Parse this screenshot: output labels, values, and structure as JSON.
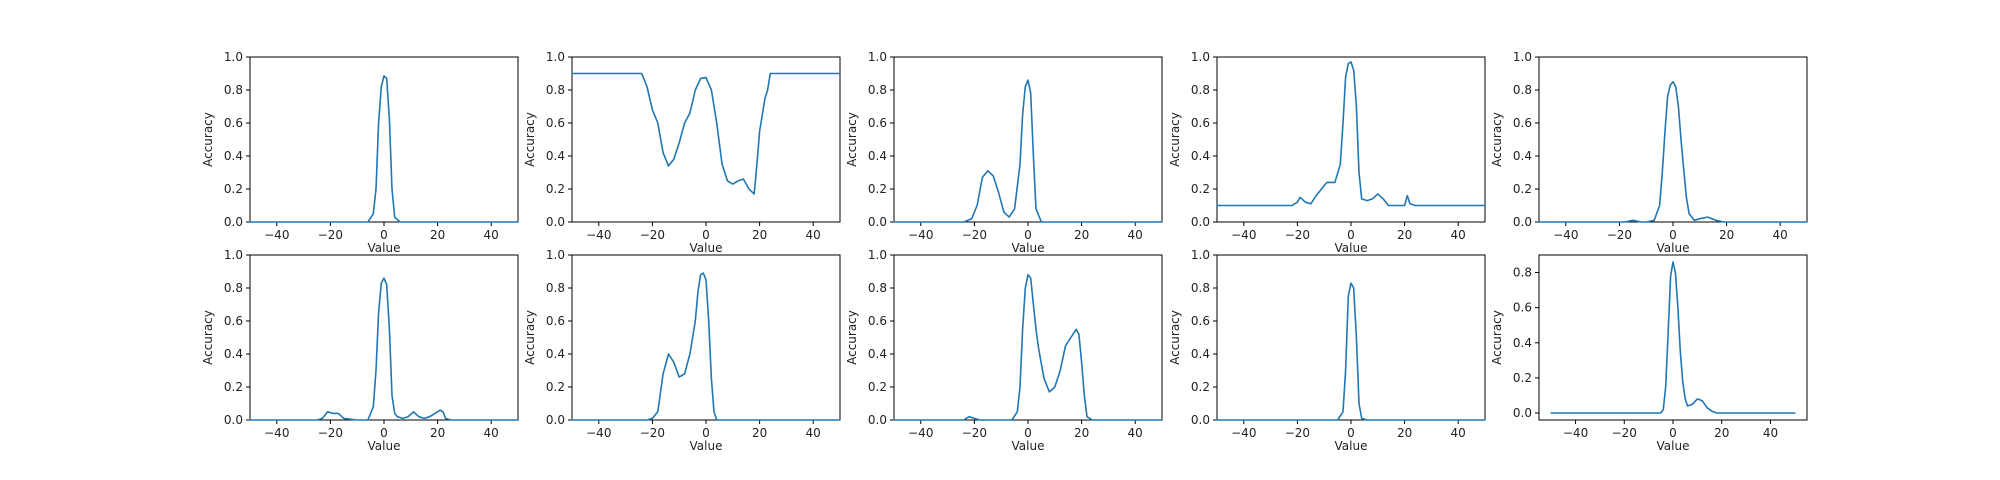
{
  "chart_data": [
    {
      "type": "line",
      "xlabel": "Value",
      "ylabel": "Accuracy",
      "xlim": [
        -50,
        50
      ],
      "ylim": [
        0,
        1.0
      ],
      "xticks": [
        -40,
        -20,
        0,
        20,
        40
      ],
      "yticks": [
        0.0,
        0.2,
        0.4,
        0.6,
        0.8,
        1.0
      ],
      "ytick_labels": [
        "0.0",
        "0.2",
        "0.4",
        "0.6",
        "0.8",
        "1.0"
      ],
      "color": "#1f77b4",
      "grid": false,
      "series": [
        {
          "x": [
            -50,
            -10,
            -6,
            -4,
            -3,
            -2,
            -1,
            0,
            1,
            2,
            3,
            4,
            6,
            10,
            50
          ],
          "y": [
            0,
            0,
            0,
            0.05,
            0.2,
            0.6,
            0.82,
            0.885,
            0.87,
            0.62,
            0.2,
            0.03,
            0,
            0,
            0
          ]
        }
      ]
    },
    {
      "type": "line",
      "xlabel": "Value",
      "ylabel": "Accuracy",
      "xlim": [
        -50,
        50
      ],
      "ylim": [
        0,
        1.0
      ],
      "xticks": [
        -40,
        -20,
        0,
        20,
        40
      ],
      "yticks": [
        0.0,
        0.2,
        0.4,
        0.6,
        0.8,
        1.0
      ],
      "ytick_labels": [
        "0.0",
        "0.2",
        "0.4",
        "0.6",
        "0.8",
        "1.0"
      ],
      "color": "#1f77b4",
      "grid": false,
      "series": [
        {
          "x": [
            -50,
            -24,
            -22,
            -20,
            -18,
            -16,
            -14,
            -12,
            -10,
            -8,
            -6,
            -4,
            -2,
            0,
            2,
            4,
            6,
            8,
            10,
            12,
            14,
            16,
            18,
            19,
            20,
            22,
            23,
            24,
            26,
            50
          ],
          "y": [
            0.9,
            0.9,
            0.82,
            0.68,
            0.6,
            0.42,
            0.34,
            0.38,
            0.48,
            0.6,
            0.66,
            0.8,
            0.87,
            0.875,
            0.8,
            0.6,
            0.35,
            0.25,
            0.23,
            0.25,
            0.26,
            0.2,
            0.17,
            0.35,
            0.55,
            0.75,
            0.8,
            0.9,
            0.9,
            0.9
          ]
        }
      ]
    },
    {
      "type": "line",
      "xlabel": "Value",
      "ylabel": "Accuracy",
      "xlim": [
        -50,
        50
      ],
      "ylim": [
        0,
        1.0
      ],
      "xticks": [
        -40,
        -20,
        0,
        20,
        40
      ],
      "yticks": [
        0.0,
        0.2,
        0.4,
        0.6,
        0.8,
        1.0
      ],
      "ytick_labels": [
        "0.0",
        "0.2",
        "0.4",
        "0.6",
        "0.8",
        "1.0"
      ],
      "color": "#1f77b4",
      "grid": false,
      "series": [
        {
          "x": [
            -50,
            -24,
            -21,
            -19,
            -17,
            -15,
            -13,
            -11,
            -9,
            -7,
            -5,
            -3,
            -2,
            -1,
            0,
            1,
            2,
            3,
            5,
            50
          ],
          "y": [
            0,
            0,
            0.02,
            0.1,
            0.27,
            0.31,
            0.28,
            0.18,
            0.06,
            0.03,
            0.08,
            0.35,
            0.65,
            0.82,
            0.86,
            0.78,
            0.4,
            0.08,
            0,
            0
          ]
        }
      ]
    },
    {
      "type": "line",
      "xlabel": "Value",
      "ylabel": "Accuracy",
      "xlim": [
        -50,
        50
      ],
      "ylim": [
        0,
        1.0
      ],
      "xticks": [
        -40,
        -20,
        0,
        20,
        40
      ],
      "yticks": [
        0.0,
        0.2,
        0.4,
        0.6,
        0.8,
        1.0
      ],
      "ytick_labels": [
        "0.0",
        "0.2",
        "0.4",
        "0.6",
        "0.8",
        "1.0"
      ],
      "color": "#1f77b4",
      "grid": false,
      "series": [
        {
          "x": [
            -50,
            -22,
            -20,
            -19,
            -17,
            -15,
            -13,
            -11,
            -9,
            -8,
            -6,
            -4,
            -3,
            -2,
            -1,
            0,
            1,
            2,
            3,
            4,
            6,
            8,
            10,
            12,
            14,
            16,
            18,
            20,
            21,
            22,
            24,
            50
          ],
          "y": [
            0.1,
            0.1,
            0.12,
            0.15,
            0.12,
            0.11,
            0.16,
            0.2,
            0.24,
            0.24,
            0.24,
            0.35,
            0.6,
            0.88,
            0.96,
            0.97,
            0.92,
            0.7,
            0.3,
            0.14,
            0.13,
            0.14,
            0.17,
            0.14,
            0.1,
            0.1,
            0.1,
            0.1,
            0.16,
            0.11,
            0.1,
            0.1
          ]
        }
      ]
    },
    {
      "type": "line",
      "xlabel": "Value",
      "ylabel": "Accuracy",
      "xlim": [
        -50,
        50
      ],
      "ylim": [
        0,
        1.0
      ],
      "xticks": [
        -40,
        -20,
        0,
        20,
        40
      ],
      "yticks": [
        0.0,
        0.2,
        0.4,
        0.6,
        0.8,
        1.0
      ],
      "ytick_labels": [
        "0.0",
        "0.2",
        "0.4",
        "0.6",
        "0.8",
        "1.0"
      ],
      "color": "#1f77b4",
      "grid": false,
      "series": [
        {
          "x": [
            -50,
            -18,
            -15,
            -12,
            -10,
            -7,
            -5,
            -4,
            -3,
            -2,
            -1,
            0,
            1,
            2,
            3,
            4,
            5,
            6,
            8,
            10,
            13,
            16,
            19,
            50
          ],
          "y": [
            0,
            0,
            0.01,
            0,
            0,
            0.01,
            0.1,
            0.3,
            0.55,
            0.76,
            0.83,
            0.85,
            0.82,
            0.7,
            0.5,
            0.32,
            0.15,
            0.05,
            0.01,
            0.02,
            0.03,
            0.01,
            0,
            0
          ]
        }
      ]
    },
    {
      "type": "line",
      "xlabel": "Value",
      "ylabel": "Accuracy",
      "xlim": [
        -50,
        50
      ],
      "ylim": [
        0,
        1.0
      ],
      "xticks": [
        -40,
        -20,
        0,
        20,
        40
      ],
      "yticks": [
        0.0,
        0.2,
        0.4,
        0.6,
        0.8,
        1.0
      ],
      "ytick_labels": [
        "0.0",
        "0.2",
        "0.4",
        "0.6",
        "0.8",
        "1.0"
      ],
      "color": "#1f77b4",
      "grid": false,
      "series": [
        {
          "x": [
            -50,
            -25,
            -23,
            -21,
            -19,
            -17,
            -15,
            -10,
            -6,
            -4,
            -3,
            -2,
            -1,
            0,
            1,
            2,
            3,
            4,
            5,
            7,
            9,
            11,
            13,
            15,
            17,
            19,
            21,
            22,
            23,
            25,
            50
          ],
          "y": [
            0,
            0,
            0.01,
            0.05,
            0.04,
            0.04,
            0.01,
            0,
            0,
            0.08,
            0.3,
            0.65,
            0.83,
            0.86,
            0.82,
            0.55,
            0.15,
            0.04,
            0.02,
            0.01,
            0.02,
            0.05,
            0.02,
            0.01,
            0.02,
            0.04,
            0.06,
            0.05,
            0.01,
            0,
            0
          ]
        }
      ]
    },
    {
      "type": "line",
      "xlabel": "Value",
      "ylabel": "Accuracy",
      "xlim": [
        -50,
        50
      ],
      "ylim": [
        0,
        1.0
      ],
      "xticks": [
        -40,
        -20,
        0,
        20,
        40
      ],
      "yticks": [
        0.0,
        0.2,
        0.4,
        0.6,
        0.8,
        1.0
      ],
      "ytick_labels": [
        "0.0",
        "0.2",
        "0.4",
        "0.6",
        "0.8",
        "1.0"
      ],
      "color": "#1f77b4",
      "grid": false,
      "series": [
        {
          "x": [
            -50,
            -22,
            -20,
            -18,
            -16,
            -14,
            -12,
            -10,
            -8,
            -6,
            -4,
            -3,
            -2,
            -1,
            0,
            1,
            2,
            3,
            4,
            6,
            50
          ],
          "y": [
            0,
            0,
            0.01,
            0.05,
            0.28,
            0.4,
            0.35,
            0.26,
            0.28,
            0.4,
            0.6,
            0.78,
            0.88,
            0.89,
            0.85,
            0.6,
            0.25,
            0.05,
            0,
            0,
            0
          ]
        }
      ]
    },
    {
      "type": "line",
      "xlabel": "Value",
      "ylabel": "Accuracy",
      "xlim": [
        -50,
        50
      ],
      "ylim": [
        0,
        1.0
      ],
      "xticks": [
        -40,
        -20,
        0,
        20,
        40
      ],
      "yticks": [
        0.0,
        0.2,
        0.4,
        0.6,
        0.8,
        1.0
      ],
      "ytick_labels": [
        "0.0",
        "0.2",
        "0.4",
        "0.6",
        "0.8",
        "1.0"
      ],
      "color": "#1f77b4",
      "grid": false,
      "series": [
        {
          "x": [
            -50,
            -24,
            -22,
            -20,
            -18,
            -10,
            -6,
            -4,
            -3,
            -2,
            -1,
            0,
            1,
            2,
            3,
            4,
            6,
            8,
            10,
            12,
            14,
            16,
            18,
            19,
            20,
            21,
            22,
            24,
            50
          ],
          "y": [
            0,
            0,
            0.02,
            0.01,
            0,
            0,
            0,
            0.05,
            0.2,
            0.55,
            0.8,
            0.88,
            0.86,
            0.7,
            0.55,
            0.43,
            0.25,
            0.17,
            0.2,
            0.3,
            0.45,
            0.5,
            0.55,
            0.52,
            0.35,
            0.15,
            0.02,
            0,
            0
          ]
        }
      ]
    },
    {
      "type": "line",
      "xlabel": "Value",
      "ylabel": "Accuracy",
      "xlim": [
        -50,
        50
      ],
      "ylim": [
        0,
        1.0
      ],
      "xticks": [
        -40,
        -20,
        0,
        20,
        40
      ],
      "yticks": [
        0.0,
        0.2,
        0.4,
        0.6,
        0.8,
        1.0
      ],
      "ytick_labels": [
        "0.0",
        "0.2",
        "0.4",
        "0.6",
        "0.8",
        "1.0"
      ],
      "color": "#1f77b4",
      "grid": false,
      "series": [
        {
          "x": [
            -50,
            -7,
            -5,
            -3,
            -2,
            -1,
            0,
            1,
            2,
            3,
            4,
            6,
            50
          ],
          "y": [
            0,
            0,
            0,
            0.05,
            0.3,
            0.75,
            0.83,
            0.8,
            0.5,
            0.1,
            0.01,
            0,
            0
          ]
        }
      ]
    },
    {
      "type": "line",
      "xlabel": "Value",
      "ylabel": "Accuracy",
      "xlim": [
        -55,
        55
      ],
      "ylim": [
        -0.04,
        0.9
      ],
      "xticks": [
        -40,
        -20,
        0,
        20,
        40
      ],
      "yticks": [
        0.0,
        0.2,
        0.4,
        0.6,
        0.8
      ],
      "ytick_labels": [
        "0.0",
        "0.2",
        "0.4",
        "0.6",
        "0.8"
      ],
      "color": "#1f77b4",
      "grid": false,
      "series": [
        {
          "x": [
            -50,
            -7,
            -5,
            -4,
            -3,
            -2,
            -1,
            0,
            1,
            2,
            3,
            4,
            5,
            6,
            8,
            10,
            12,
            14,
            16,
            18,
            20,
            50
          ],
          "y": [
            0,
            0,
            0,
            0.02,
            0.15,
            0.45,
            0.78,
            0.86,
            0.8,
            0.6,
            0.35,
            0.18,
            0.08,
            0.04,
            0.05,
            0.08,
            0.07,
            0.03,
            0.01,
            0,
            0,
            0
          ]
        }
      ]
    }
  ]
}
